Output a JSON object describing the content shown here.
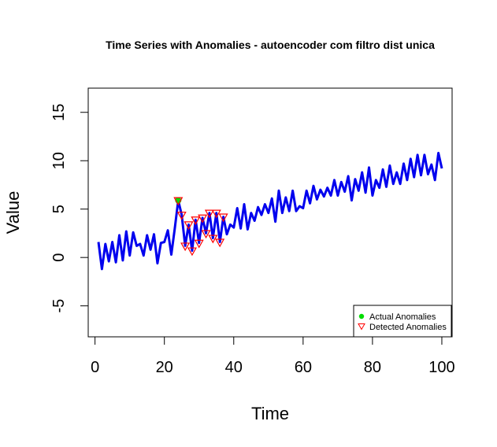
{
  "chart_data": {
    "type": "line",
    "title": "Time Series with Anomalies - autoencoder com filtro dist unica",
    "xlabel": "Time",
    "ylabel": "Value",
    "xlim": [
      -1.96,
      102.96
    ],
    "ylim": [
      -8.2,
      17.5
    ],
    "xticks": [
      0,
      20,
      40,
      60,
      80,
      100
    ],
    "yticks": [
      -5,
      0,
      5,
      10,
      15
    ],
    "xtick_labels": [
      "0",
      "20",
      "40",
      "60",
      "80",
      "100"
    ],
    "ytick_labels": [
      "-5",
      "0",
      "5",
      "10",
      "15"
    ],
    "grid": false,
    "legend_position": "bottom-right",
    "colors": {
      "series": "#0000ee",
      "actual_anomaly": "#00dd00",
      "detected_anomaly": "#ff0000"
    },
    "series": [
      {
        "name": "",
        "x": [
          1,
          2,
          3,
          4,
          5,
          6,
          7,
          8,
          9,
          10,
          11,
          12,
          13,
          14,
          15,
          16,
          17,
          18,
          19,
          20,
          21,
          22,
          23,
          24,
          25,
          26,
          27,
          28,
          29,
          30,
          31,
          32,
          33,
          34,
          35,
          36,
          37,
          38,
          39,
          40,
          41,
          42,
          43,
          44,
          45,
          46,
          47,
          48,
          49,
          50,
          51,
          52,
          53,
          54,
          55,
          56,
          57,
          58,
          59,
          60,
          61,
          62,
          63,
          64,
          65,
          66,
          67,
          68,
          69,
          70,
          71,
          72,
          73,
          74,
          75,
          76,
          77,
          78,
          79,
          80,
          81,
          82,
          83,
          84,
          85,
          86,
          87,
          88,
          89,
          90,
          91,
          92,
          93,
          94,
          95,
          96,
          97,
          98,
          99,
          100
        ],
        "y": [
          1.6,
          -1.2,
          1.4,
          -0.4,
          1.6,
          -0.5,
          2.3,
          -0.3,
          2.7,
          0.2,
          2.6,
          1.2,
          1.4,
          0.2,
          2.3,
          0.8,
          2.4,
          -0.6,
          1.5,
          1.6,
          2.8,
          0.3,
          3.0,
          5.9,
          4.4,
          1.2,
          3.4,
          0.7,
          3.9,
          1.5,
          4.1,
          2.5,
          4.6,
          2.0,
          4.6,
          1.6,
          4.2,
          2.4,
          3.4,
          3.1,
          5.1,
          3.0,
          5.5,
          2.9,
          4.6,
          3.8,
          5.2,
          4.4,
          5.5,
          4.6,
          6.1,
          3.7,
          6.9,
          4.6,
          6.2,
          4.8,
          6.9,
          4.8,
          5.3,
          5.1,
          6.9,
          5.6,
          7.4,
          6.0,
          7.0,
          6.3,
          7.2,
          6.4,
          8.0,
          6.4,
          7.8,
          6.8,
          8.4,
          5.9,
          8.1,
          6.9,
          8.8,
          6.7,
          9.3,
          6.4,
          8.0,
          7.2,
          9.1,
          7.3,
          9.5,
          7.6,
          8.8,
          7.6,
          9.7,
          8.0,
          10.2,
          8.3,
          10.6,
          8.5,
          10.6,
          8.6,
          9.6,
          8.0,
          10.8,
          9.2
        ]
      }
    ],
    "actual_anomalies": {
      "name": "Actual Anomalies",
      "x": [
        24
      ],
      "y": [
        5.9
      ]
    },
    "detected_anomalies": {
      "name": "Detected Anomalies",
      "x": [
        24,
        25,
        26,
        27,
        28,
        29,
        30,
        31,
        32,
        33,
        34,
        35,
        36,
        37
      ],
      "y": [
        5.9,
        4.4,
        1.2,
        3.4,
        0.7,
        3.9,
        1.5,
        4.1,
        2.5,
        4.6,
        2.0,
        4.6,
        1.6,
        4.2
      ]
    }
  }
}
